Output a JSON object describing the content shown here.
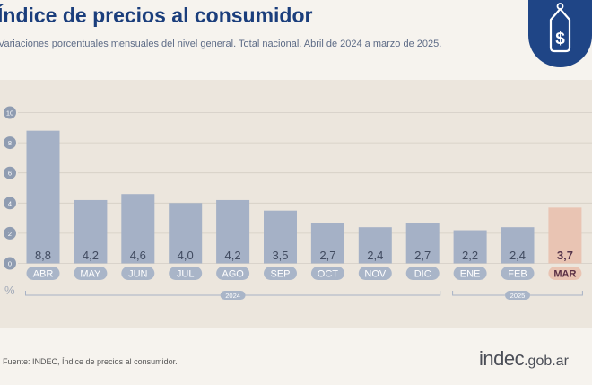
{
  "header": {
    "title": "Índice de precios al consumidor",
    "subtitle": "Variaciones porcentuales mensuales del nivel general. Total nacional. Abril de 2024 a marzo de 2025."
  },
  "badge": {
    "icon": "price-tag-dollar-icon",
    "background": "#1f4586"
  },
  "chart_data": {
    "type": "bar",
    "ylabel": "%",
    "ylim": [
      0,
      10
    ],
    "yticks": [
      0,
      2,
      4,
      6,
      8,
      10
    ],
    "grid": true,
    "categories": [
      "ABR",
      "MAY",
      "JUN",
      "JUL",
      "AGO",
      "SEP",
      "OCT",
      "NOV",
      "DIC",
      "ENE",
      "FEB",
      "MAR"
    ],
    "values": [
      8.8,
      4.2,
      4.6,
      4.0,
      4.2,
      3.5,
      2.7,
      2.4,
      2.7,
      2.2,
      2.4,
      3.7
    ],
    "value_labels": [
      "8,8",
      "4,2",
      "4,6",
      "4,0",
      "4,2",
      "3,5",
      "2,7",
      "2,4",
      "2,7",
      "2,2",
      "2,4",
      "3,7"
    ],
    "highlight_index": 11,
    "groups": [
      {
        "label": "2024",
        "from": 0,
        "to": 8
      },
      {
        "label": "2025",
        "from": 9,
        "to": 11
      }
    ],
    "colors": {
      "bar": "#a5b1c6",
      "bar_highlight": "#e9c4b3",
      "pill": "#a9b5c8",
      "pill_highlight": "#e9c4b3",
      "value_text": "#414b60",
      "value_highlight_text": "#54334a",
      "grid": "#d3cdc4",
      "tick_badge": "#8f9cb1"
    }
  },
  "footer": {
    "source": "Fuente: INDEC, Índice de precios al consumidor.",
    "logo_main": "indec",
    "logo_tld": ".gob.ar"
  }
}
